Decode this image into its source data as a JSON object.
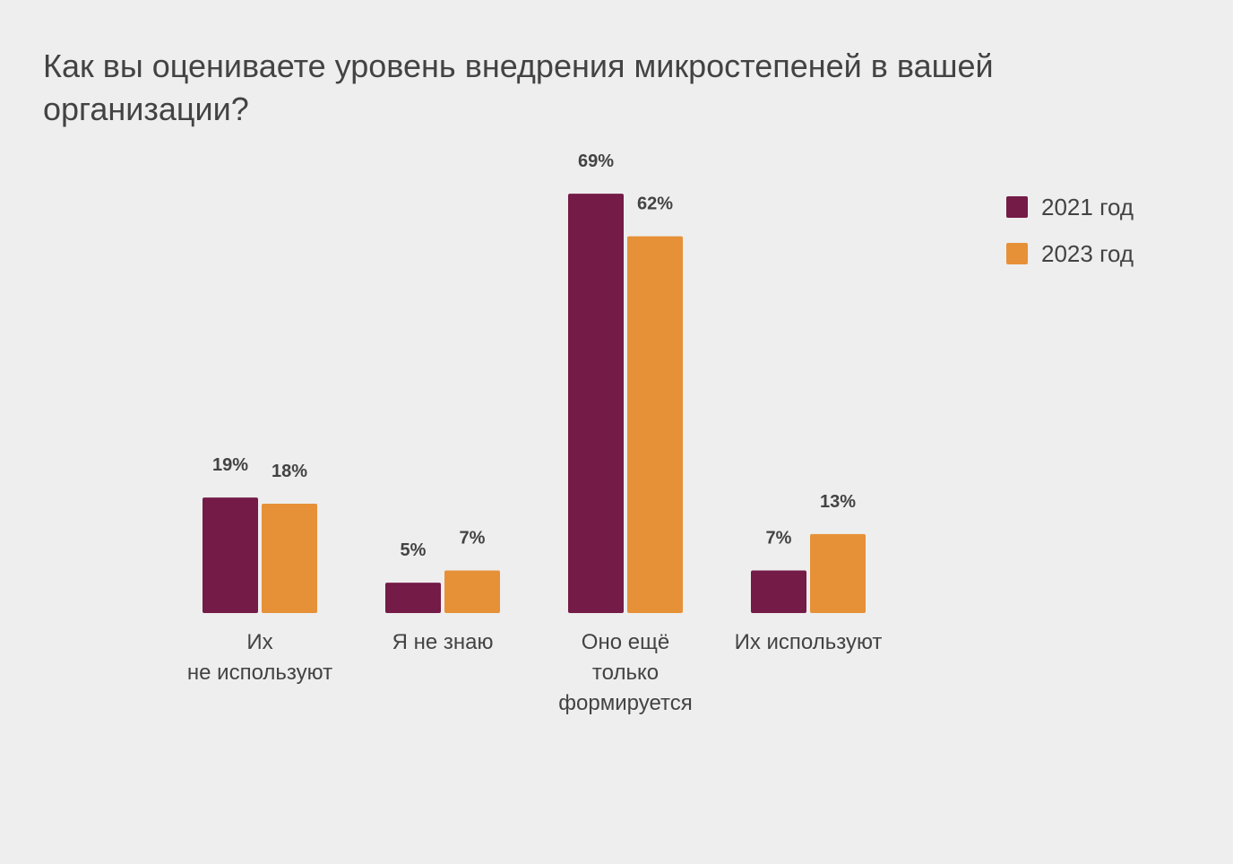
{
  "chart_data": {
    "type": "bar",
    "title": "Как вы оцениваете уровень внедрения микростепеней в вашей организации?",
    "categories": [
      [
        "Их",
        "не используют"
      ],
      [
        "Я не знаю"
      ],
      [
        "Оно ещё",
        "только",
        "формируется"
      ],
      [
        "Их используют"
      ]
    ],
    "series": [
      {
        "name": "2021 год",
        "color": "#741b47",
        "values": [
          19,
          5,
          69,
          7
        ],
        "labels": [
          "19%",
          "5%",
          "69%",
          "7%"
        ]
      },
      {
        "name": "2023 год",
        "color": "#e69138",
        "values": [
          18,
          7,
          62,
          13
        ],
        "labels": [
          "18%",
          "7%",
          "62%",
          "13%"
        ]
      }
    ],
    "xlabel": "",
    "ylabel": "",
    "ylim": [
      0,
      69
    ],
    "grid": false,
    "legend_position": "top-right"
  }
}
